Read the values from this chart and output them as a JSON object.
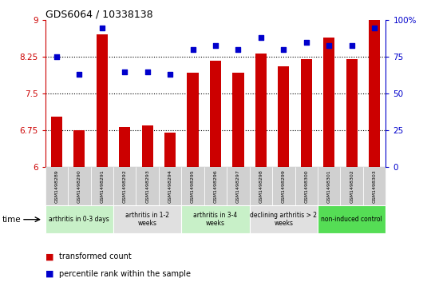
{
  "title": "GDS6064 / 10338138",
  "samples": [
    "GSM1498289",
    "GSM1498290",
    "GSM1498291",
    "GSM1498292",
    "GSM1498293",
    "GSM1498294",
    "GSM1498295",
    "GSM1498296",
    "GSM1498297",
    "GSM1498298",
    "GSM1498299",
    "GSM1498300",
    "GSM1498301",
    "GSM1498302",
    "GSM1498303"
  ],
  "bar_values": [
    7.02,
    6.75,
    8.72,
    6.82,
    6.85,
    6.7,
    7.92,
    8.18,
    7.92,
    8.32,
    8.06,
    8.2,
    8.65,
    8.2,
    9.02
  ],
  "dot_values": [
    75,
    63,
    95,
    65,
    65,
    63,
    80,
    83,
    80,
    88,
    80,
    85,
    83,
    83,
    95
  ],
  "bar_color": "#cc0000",
  "dot_color": "#0000cc",
  "ylim_left": [
    6,
    9
  ],
  "ylim_right": [
    0,
    100
  ],
  "yticks_left": [
    6,
    6.75,
    7.5,
    8.25,
    9
  ],
  "yticks_right": [
    0,
    25,
    50,
    75,
    100
  ],
  "ytick_labels_left": [
    "6",
    "6.75",
    "7.5",
    "8.25",
    "9"
  ],
  "ytick_labels_right": [
    "0",
    "25",
    "50",
    "75",
    "100%"
  ],
  "hlines": [
    6.75,
    7.5,
    8.25
  ],
  "groups": [
    {
      "label": "arthritis in 0-3 days",
      "start": 0,
      "end": 3,
      "color": "#c8f0c8"
    },
    {
      "label": "arthritis in 1-2\nweeks",
      "start": 3,
      "end": 6,
      "color": "#e0e0e0"
    },
    {
      "label": "arthritis in 3-4\nweeks",
      "start": 6,
      "end": 9,
      "color": "#c8f0c8"
    },
    {
      "label": "declining arthritis > 2\nweeks",
      "start": 9,
      "end": 12,
      "color": "#e0e0e0"
    },
    {
      "label": "non-induced control",
      "start": 12,
      "end": 15,
      "color": "#55dd55"
    }
  ],
  "legend_bar_label": "transformed count",
  "legend_dot_label": "percentile rank within the sample",
  "time_label": "time"
}
